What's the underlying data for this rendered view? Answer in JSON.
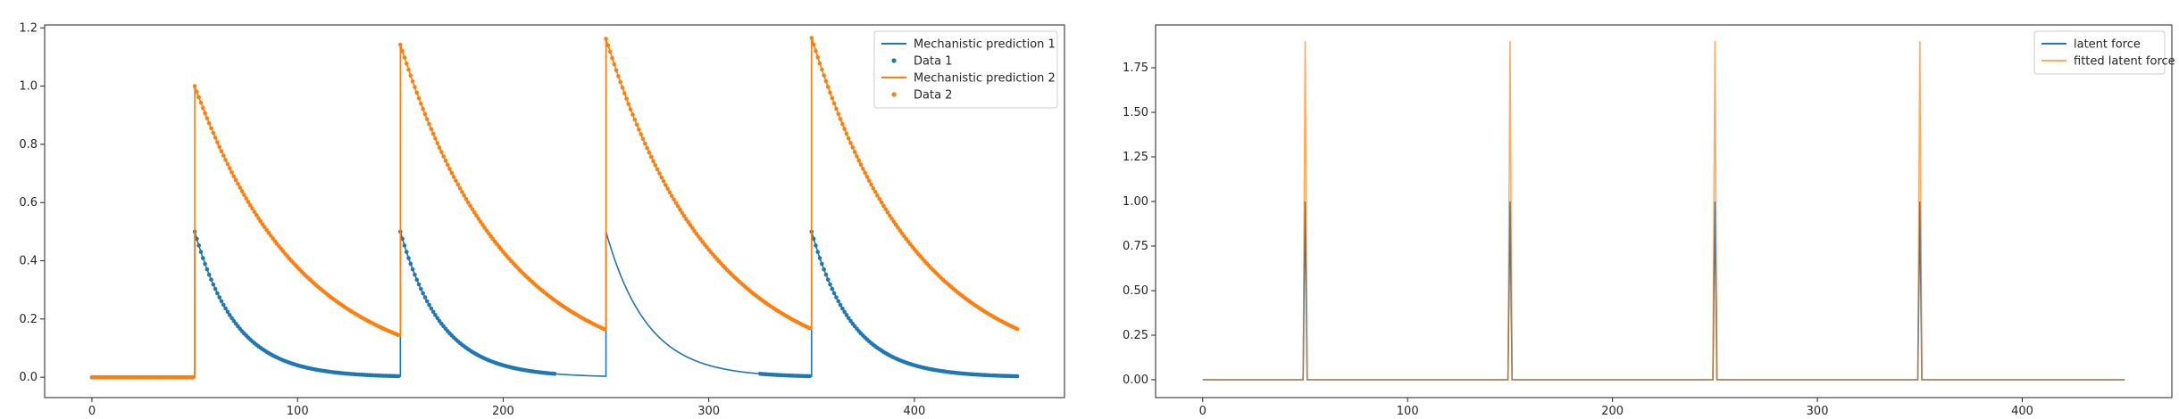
{
  "chart_data": [
    {
      "type": "line",
      "title": "",
      "xlabel": "",
      "ylabel": "",
      "xlim": [
        -23,
        473
      ],
      "ylim": [
        -0.07,
        1.21
      ],
      "xticks": [
        0,
        100,
        200,
        300,
        400
      ],
      "yticks": [
        0.0,
        0.2,
        0.4,
        0.6,
        0.8,
        1.0,
        1.2
      ],
      "ytick_labels": [
        "0.0",
        "0.2",
        "0.4",
        "0.6",
        "0.8",
        "1.0",
        "1.2"
      ],
      "legend_position": "top-right",
      "spikes": [
        50,
        150,
        250,
        350
      ],
      "series": [
        {
          "name": "Mechanistic prediction 1",
          "style": "line",
          "color": "#1f77b4",
          "model": "pulse_decay",
          "peaks": [
            0.5,
            0.5,
            0.5,
            0.5
          ],
          "decay_rate": 0.05,
          "x_range": [
            0,
            450
          ]
        },
        {
          "name": "Data 1",
          "style": "points",
          "color": "#1f77b4",
          "model": "pulse_decay",
          "peaks": [
            0.5,
            0.5,
            0.5,
            0.5
          ],
          "decay_rate": 0.05,
          "x_ranges": [
            [
              0,
              225
            ],
            [
              325,
              450
            ]
          ]
        },
        {
          "name": "Mechanistic prediction 2",
          "style": "line",
          "color": "#ff7f0e",
          "model": "pulse_accumulate",
          "jump": 1.0,
          "decay_rate": 0.0195,
          "x_range": [
            0,
            450
          ]
        },
        {
          "name": "Data 2",
          "style": "points",
          "color": "#ff7f0e",
          "model": "pulse_accumulate",
          "jump": 1.0,
          "decay_rate": 0.0195,
          "x_ranges": [
            [
              0,
              450
            ]
          ]
        }
      ]
    },
    {
      "type": "line",
      "title": "",
      "xlabel": "",
      "ylabel": "",
      "xlim": [
        -23,
        473
      ],
      "ylim": [
        -0.1,
        1.99
      ],
      "xticks": [
        0,
        100,
        200,
        300,
        400
      ],
      "yticks": [
        0.0,
        0.25,
        0.5,
        0.75,
        1.0,
        1.25,
        1.5,
        1.75
      ],
      "ytick_labels": [
        "0.00",
        "0.25",
        "0.50",
        "0.75",
        "1.00",
        "1.25",
        "1.50",
        "1.75"
      ],
      "legend_position": "top-right",
      "spikes": [
        50,
        150,
        250,
        350
      ],
      "series": [
        {
          "name": "latent force",
          "style": "line",
          "color": "#1f77b4",
          "model": "spikes",
          "height": 1.0,
          "x_range": [
            0,
            450
          ]
        },
        {
          "name": "fitted latent force",
          "style": "line",
          "color": "#ff7f0e",
          "opacity": 0.65,
          "model": "spikes",
          "height": 1.9,
          "x_range": [
            0,
            450
          ]
        }
      ]
    }
  ]
}
